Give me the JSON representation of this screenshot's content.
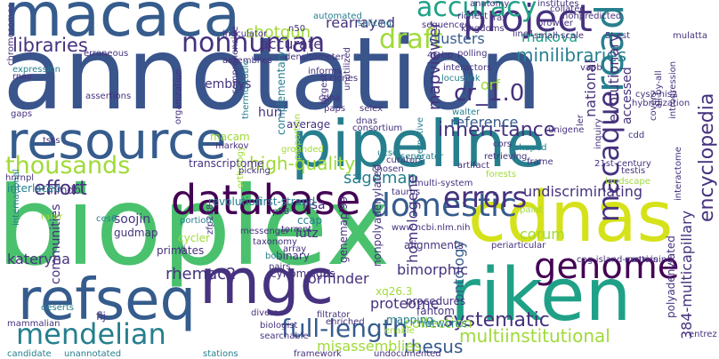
{
  "palette": {
    "dark_purple": "#440154",
    "indigo": "#46327e",
    "blue": "#365c8d",
    "slate_blue": "#3a548c",
    "teal": "#277f8e",
    "teal_green": "#1fa187",
    "green": "#4ac16d",
    "light_green": "#6ece58",
    "lime": "#a0da39",
    "yellow": "#d5e21a",
    "bright_yellow": "#fde725"
  },
  "words": [
    {
      "text": "annotation",
      "color": "slate_blue"
    },
    {
      "text": "bioplex",
      "color": "green"
    },
    {
      "text": "resource",
      "color": "blue"
    },
    {
      "text": "pipeline",
      "color": "teal"
    },
    {
      "text": "riken",
      "color": "teal_green"
    },
    {
      "text": "cdnas",
      "color": "yellow"
    },
    {
      "text": "macaca",
      "color": "blue"
    },
    {
      "text": "refseq",
      "color": "blue"
    },
    {
      "text": "mgc",
      "color": "indigo"
    },
    {
      "text": "project",
      "color": "indigo"
    },
    {
      "text": "database",
      "color": "dark_purple"
    },
    {
      "text": "genome",
      "color": "dark_purple"
    },
    {
      "text": "accuracy",
      "color": "teal_green"
    },
    {
      "text": "draft",
      "color": "lime"
    },
    {
      "text": "read",
      "color": "teal"
    },
    {
      "text": "nonhuman",
      "color": "indigo"
    },
    {
      "text": "libraries",
      "color": "indigo"
    },
    {
      "text": "mendelian",
      "color": "teal"
    },
    {
      "text": "full-length",
      "color": "blue"
    },
    {
      "text": "domestic",
      "color": "blue"
    },
    {
      "text": "errors",
      "color": "indigo"
    },
    {
      "text": "macaque",
      "color": "indigo"
    },
    {
      "text": "thousands",
      "color": "lime"
    },
    {
      "text": "effort",
      "color": "indigo"
    },
    {
      "text": "inheri-tance",
      "color": "indigo"
    },
    {
      "text": "encyclopedia",
      "color": "indigo"
    },
    {
      "text": "systematic",
      "color": "indigo"
    },
    {
      "text": "high-quality",
      "color": "lime"
    },
    {
      "text": "minilibraries",
      "color": "teal"
    },
    {
      "text": "shotgun",
      "color": "lime"
    },
    {
      "text": "rearrayed",
      "color": "indigo"
    },
    {
      "text": "makova",
      "color": "teal_green"
    },
    {
      "text": "cr_1.0",
      "color": "indigo"
    },
    {
      "text": "orf",
      "color": "lime"
    },
    {
      "text": "national",
      "color": "indigo"
    },
    {
      "text": "mapviewer",
      "color": "indigo"
    },
    {
      "text": "sagemap",
      "color": "teal"
    },
    {
      "text": "corum",
      "color": "lime"
    },
    {
      "text": "rhesus",
      "color": "blue"
    },
    {
      "text": "multiinstitutional",
      "color": "lime"
    },
    {
      "text": "ontology",
      "color": "blue"
    },
    {
      "text": "bimorphic",
      "color": "indigo"
    },
    {
      "text": "rhemac2",
      "color": "indigo"
    },
    {
      "text": "proteome",
      "color": "indigo"
    },
    {
      "text": "collection",
      "color": "lime"
    },
    {
      "text": "384-multicapillary",
      "color": "indigo"
    },
    {
      "text": "misassemblies",
      "color": "lime"
    },
    {
      "text": "homologene",
      "color": "indigo"
    },
    {
      "text": "undiscriminating",
      "color": "indigo"
    },
    {
      "text": "reference",
      "color": "blue"
    },
    {
      "text": "clusters",
      "color": "blue"
    },
    {
      "text": "accurate",
      "color": "indigo"
    },
    {
      "text": "huri",
      "color": "indigo"
    },
    {
      "text": "embrys",
      "color": "indigo"
    },
    {
      "text": "accessed",
      "color": "indigo"
    },
    {
      "text": "evolutionary",
      "color": "indigo"
    },
    {
      "text": "orffinder",
      "color": "indigo"
    },
    {
      "text": "kateryna",
      "color": "indigo"
    },
    {
      "text": "communities",
      "color": "indigo"
    },
    {
      "text": "soojin",
      "color": "indigo"
    },
    {
      "text": "mmdb",
      "color": "indigo"
    },
    {
      "text": "risa",
      "color": "indigo"
    },
    {
      "text": "lutz",
      "color": "indigo"
    },
    {
      "text": "average",
      "color": "indigo"
    },
    {
      "text": "macam",
      "color": "lime"
    },
    {
      "text": "transcriptome",
      "color": "indigo"
    },
    {
      "text": "interlaced",
      "color": "teal"
    },
    {
      "text": "gudmap",
      "color": "indigo"
    },
    {
      "text": "cycler",
      "color": "lime"
    },
    {
      "text": "revolution",
      "color": "teal"
    },
    {
      "text": "first-strand",
      "color": "teal"
    },
    {
      "text": "ccap",
      "color": "teal"
    },
    {
      "text": "genemap'99",
      "color": "indigo"
    },
    {
      "text": "binary",
      "color": "indigo"
    },
    {
      "text": "alignments",
      "color": "indigo"
    },
    {
      "text": "primates",
      "color": "indigo"
    },
    {
      "text": "cynomolgus",
      "color": "indigo"
    },
    {
      "text": "procedures",
      "color": "indigo"
    },
    {
      "text": "fantom",
      "color": "indigo"
    },
    {
      "text": "networks",
      "color": "teal"
    },
    {
      "text": "mapping",
      "color": "teal"
    },
    {
      "text": "flj",
      "color": "indigo"
    },
    {
      "text": "nonpolyadenylated",
      "color": "indigo"
    },
    {
      "text": "polyadenylated",
      "color": "indigo"
    },
    {
      "text": "xq26.3",
      "color": "lime"
    },
    {
      "text": "entrez",
      "color": "indigo"
    },
    {
      "text": "splicing",
      "color": "teal"
    },
    {
      "text": "sequenced",
      "color": "indigo"
    },
    {
      "text": "richest",
      "color": "indigo"
    },
    {
      "text": "automated",
      "color": "teal"
    },
    {
      "text": "anatomy",
      "color": "indigo"
    },
    {
      "text": "institutes",
      "color": "indigo"
    },
    {
      "text": "nonpredicted",
      "color": "indigo"
    },
    {
      "text": "small-scale",
      "color": "indigo"
    },
    {
      "text": "5'-est",
      "color": "indigo"
    },
    {
      "text": "mulatta",
      "color": "indigo"
    },
    {
      "text": "polling",
      "color": "indigo"
    },
    {
      "text": "interactors",
      "color": "indigo"
    },
    {
      "text": "locuslink",
      "color": "teal"
    },
    {
      "text": "n50",
      "color": "indigo"
    },
    {
      "text": "46-bp",
      "color": "indigo"
    },
    {
      "text": "densitometer",
      "color": "indigo"
    },
    {
      "text": "assemblies",
      "color": "indigo"
    },
    {
      "text": "inoculator",
      "color": "indigo"
    },
    {
      "text": "informs",
      "color": "indigo"
    },
    {
      "text": "clones",
      "color": "indigo"
    },
    {
      "text": "largest",
      "color": "indigo"
    },
    {
      "text": "complementary",
      "color": "teal"
    },
    {
      "text": "proportion",
      "color": "lime"
    },
    {
      "text": "organization",
      "color": "indigo"
    },
    {
      "text": "cdna",
      "color": "indigo"
    },
    {
      "text": "unutilized",
      "color": "indigo"
    },
    {
      "text": "vapb",
      "color": "indigo"
    },
    {
      "text": "cys2-his2",
      "color": "indigo"
    },
    {
      "text": "all-by-all",
      "color": "indigo"
    },
    {
      "text": "introgression",
      "color": "indigo"
    },
    {
      "text": "walter",
      "color": "teal"
    },
    {
      "text": "selex",
      "color": "indigo"
    },
    {
      "text": "paps",
      "color": "indigo"
    },
    {
      "text": "consortium",
      "color": "indigo"
    },
    {
      "text": "dnas",
      "color": "indigo"
    },
    {
      "text": "cdd",
      "color": "indigo"
    },
    {
      "text": "interactome",
      "color": "indigo"
    },
    {
      "text": "21st-century",
      "color": "indigo"
    },
    {
      "text": "thermostable",
      "color": "teal"
    },
    {
      "text": "comprehensive",
      "color": "indigo"
    },
    {
      "text": "orthology",
      "color": "lime"
    },
    {
      "text": "markov",
      "color": "indigo"
    },
    {
      "text": "picking",
      "color": "indigo"
    },
    {
      "text": "grounded",
      "color": "lime"
    },
    {
      "text": "artifact",
      "color": "indigo"
    },
    {
      "text": "retrieving",
      "color": "indigo"
    },
    {
      "text": "shaped",
      "color": "teal"
    },
    {
      "text": "forests",
      "color": "lime"
    },
    {
      "text": "frame",
      "color": "indigo"
    },
    {
      "text": "multi-system",
      "color": "indigo"
    },
    {
      "text": "taurus",
      "color": "indigo"
    },
    {
      "text": "chosen",
      "color": "indigo"
    },
    {
      "text": "curators",
      "color": "indigo"
    },
    {
      "text": "rp58",
      "color": "indigo"
    },
    {
      "text": "torrent",
      "color": "indigo"
    },
    {
      "text": "messenger",
      "color": "indigo"
    },
    {
      "text": "taxonomy",
      "color": "indigo"
    },
    {
      "text": "bos",
      "color": "teal"
    },
    {
      "text": "array",
      "color": "indigo"
    },
    {
      "text": "metrics",
      "color": "indigo"
    },
    {
      "text": "cpg-island-containing",
      "color": "indigo"
    },
    {
      "text": "landscape",
      "color": "lime"
    },
    {
      "text": "testis",
      "color": "indigo"
    },
    {
      "text": "paint",
      "color": "lime"
    },
    {
      "text": "periarticular",
      "color": "indigo"
    },
    {
      "text": "pairs",
      "color": "indigo"
    },
    {
      "text": "yi",
      "color": "indigo"
    },
    {
      "text": "zfp238",
      "color": "indigo"
    },
    {
      "text": "portion",
      "color": "teal"
    },
    {
      "text": "ces6",
      "color": "teal"
    },
    {
      "text": "international",
      "color": "teal"
    },
    {
      "text": "rarer",
      "color": "lime"
    },
    {
      "text": "deserts",
      "color": "teal"
    },
    {
      "text": "mammalian",
      "color": "indigo"
    },
    {
      "text": "candidate",
      "color": "teal"
    },
    {
      "text": "unannotated",
      "color": "teal"
    },
    {
      "text": "stations",
      "color": "teal"
    },
    {
      "text": "framework",
      "color": "indigo"
    },
    {
      "text": "undocumented",
      "color": "indigo"
    },
    {
      "text": "biologist",
      "color": "indigo"
    },
    {
      "text": "searchable",
      "color": "indigo"
    },
    {
      "text": "diverse",
      "color": "indigo"
    },
    {
      "text": "enriched",
      "color": "indigo"
    },
    {
      "text": "enable",
      "color": "lime"
    },
    {
      "text": "www.ncbi.nlm.nih",
      "color": "indigo"
    },
    {
      "text": "filtrator",
      "color": "indigo"
    },
    {
      "text": "ucsc",
      "color": "teal"
    },
    {
      "text": "hnrnpl",
      "color": "indigo"
    },
    {
      "text": "tsss",
      "color": "indigo"
    },
    {
      "text": "gaps",
      "color": "indigo"
    },
    {
      "text": "assertions",
      "color": "indigo"
    },
    {
      "text": "chromosomes",
      "color": "indigo"
    },
    {
      "text": "expression",
      "color": "teal"
    },
    {
      "text": "rnas",
      "color": "indigo"
    },
    {
      "text": "erroneous",
      "color": "indigo"
    },
    {
      "text": "collated",
      "color": "indigo"
    },
    {
      "text": "kingdoms",
      "color": "indigo"
    },
    {
      "text": "browser",
      "color": "indigo"
    },
    {
      "text": "line1",
      "color": "indigo"
    },
    {
      "text": "hybridization",
      "color": "indigo"
    },
    {
      "text": "covers",
      "color": "indigo"
    },
    {
      "text": "inquiry",
      "color": "indigo"
    },
    {
      "text": "unigene",
      "color": "indigo"
    },
    {
      "text": "alternative",
      "color": "teal"
    },
    {
      "text": "separator",
      "color": "teal"
    },
    {
      "text": "ler",
      "color": "indigo"
    },
    {
      "text": "ras",
      "color": "indigo"
    },
    {
      "text": "cors",
      "color": "indigo"
    }
  ]
}
